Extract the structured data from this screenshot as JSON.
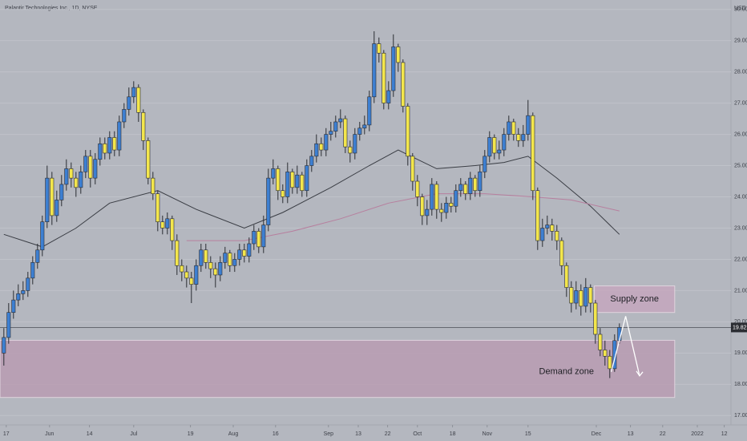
{
  "chart_data": {
    "type": "candlestick",
    "title": "Palantir Technologies Inc., 1D, NYSE",
    "currency": "USD",
    "background": "#b4b7bf",
    "up_color": "#3d7fd1",
    "down_color": "#f3e64c",
    "xlim": [
      -0.8,
      151.2
    ],
    "ylim": [
      16.7,
      30.3
    ],
    "yticks": [
      {
        "value": 17,
        "label": "17.00"
      },
      {
        "value": 18,
        "label": "18.00"
      },
      {
        "value": 19,
        "label": "19.00"
      },
      {
        "value": 20,
        "label": "20.00"
      },
      {
        "value": 21,
        "label": "21.00"
      },
      {
        "value": 22,
        "label": "22.00"
      },
      {
        "value": 23,
        "label": "23.00"
      },
      {
        "value": 24,
        "label": "24.00"
      },
      {
        "value": 25,
        "label": "25.00"
      },
      {
        "value": 26,
        "label": "26.00"
      },
      {
        "value": 27,
        "label": "27.00"
      },
      {
        "value": 28,
        "label": "28.00"
      },
      {
        "value": 29,
        "label": "29.00"
      },
      {
        "value": 30,
        "label": "30.00"
      }
    ],
    "xticks": [
      {
        "value": 0.5,
        "label": "17"
      },
      {
        "value": 9.5,
        "label": "Jun"
      },
      {
        "value": 17.8,
        "label": "14"
      },
      {
        "value": 27,
        "label": "Jul"
      },
      {
        "value": 38.8,
        "label": "19"
      },
      {
        "value": 47.7,
        "label": "Aug"
      },
      {
        "value": 56.5,
        "label": "16"
      },
      {
        "value": 67.5,
        "label": "Sep"
      },
      {
        "value": 73.7,
        "label": "13"
      },
      {
        "value": 79.8,
        "label": "22"
      },
      {
        "value": 86,
        "label": "Oct"
      },
      {
        "value": 93.3,
        "label": "18"
      },
      {
        "value": 100.5,
        "label": "Nov"
      },
      {
        "value": 109,
        "label": "15"
      },
      {
        "value": 123.2,
        "label": "Dec"
      },
      {
        "value": 130.3,
        "label": "13"
      },
      {
        "value": 137,
        "label": "22"
      },
      {
        "value": 144.2,
        "label": "2022"
      },
      {
        "value": 149.8,
        "label": "12"
      }
    ],
    "grid": true,
    "open": [
      19.0,
      19.5,
      20.3,
      20.7,
      20.9,
      21.0,
      21.4,
      21.9,
      22.3,
      23.2,
      24.6,
      23.4,
      23.9,
      24.4,
      24.9,
      24.6,
      24.3,
      24.8,
      25.3,
      24.6,
      25.2,
      25.7,
      25.4,
      25.9,
      25.5,
      26.4,
      26.8,
      27.2,
      27.5,
      26.7,
      25.8,
      24.6,
      24.1,
      23.2,
      23.0,
      23.3,
      22.6,
      21.8,
      21.6,
      21.4,
      21.2,
      21.8,
      22.3,
      21.9,
      21.7,
      21.5,
      21.9,
      22.2,
      21.8,
      22.0,
      22.3,
      22.1,
      22.5,
      22.9,
      22.4,
      23.1,
      24.6,
      24.9,
      24.2,
      24.0,
      24.8,
      24.3,
      24.7,
      24.2,
      25.0,
      25.3,
      25.7,
      25.5,
      26.0,
      26.1,
      26.4,
      26.5,
      25.6,
      25.4,
      26.0,
      26.2,
      26.3,
      27.2,
      28.9,
      28.6,
      27.0,
      27.4,
      28.8,
      28.3,
      26.9,
      25.3,
      24.5,
      24.0,
      23.4,
      23.6,
      24.4,
      23.6,
      23.5,
      23.8,
      23.7,
      24.2,
      24.4,
      24.1,
      24.6,
      24.2,
      24.8,
      25.3,
      25.9,
      25.4,
      25.5,
      26.0,
      26.4,
      26.0,
      25.8,
      26.0,
      26.6,
      24.2,
      22.6,
      23.0,
      23.1,
      22.9,
      22.6,
      21.8,
      21.1,
      20.6,
      21.0,
      20.5,
      21.1,
      20.6,
      19.6,
      19.1,
      18.9,
      18.5,
      19.4
    ],
    "high": [
      19.8,
      20.6,
      21.0,
      21.2,
      21.3,
      21.6,
      22.1,
      22.5,
      23.4,
      25.0,
      24.8,
      24.2,
      24.7,
      25.2,
      25.1,
      24.8,
      25.0,
      25.5,
      25.5,
      25.4,
      25.9,
      25.9,
      26.1,
      26.1,
      26.6,
      27.0,
      27.5,
      27.7,
      27.6,
      26.8,
      25.9,
      24.8,
      24.2,
      23.4,
      23.5,
      23.4,
      22.8,
      22.0,
      21.8,
      21.6,
      22.0,
      22.5,
      22.5,
      22.1,
      21.9,
      22.1,
      22.4,
      22.3,
      22.2,
      22.5,
      22.5,
      22.7,
      23.1,
      23.0,
      23.4,
      24.9,
      25.2,
      25.0,
      24.4,
      25.1,
      24.9,
      25.0,
      24.8,
      25.2,
      25.5,
      26.0,
      25.9,
      26.2,
      26.4,
      26.6,
      26.8,
      26.6,
      25.8,
      26.2,
      26.4,
      26.6,
      27.4,
      29.3,
      29.1,
      28.7,
      27.7,
      29.2,
      28.9,
      28.4,
      27.0,
      25.4,
      24.7,
      24.1,
      23.9,
      24.6,
      24.5,
      23.8,
      24.0,
      24.0,
      24.4,
      24.6,
      24.5,
      24.8,
      24.7,
      25.0,
      25.5,
      26.1,
      26.0,
      25.8,
      26.2,
      26.6,
      26.5,
      26.2,
      26.3,
      27.1,
      26.7,
      24.3,
      23.3,
      23.4,
      23.3,
      23.1,
      22.7,
      21.9,
      21.3,
      21.3,
      21.2,
      21.4,
      21.2,
      20.7,
      19.8,
      19.4,
      19.1,
      19.6,
      19.95
    ],
    "low": [
      18.6,
      19.3,
      20.1,
      20.5,
      20.7,
      20.8,
      21.2,
      21.7,
      22.1,
      23.0,
      23.1,
      23.2,
      23.7,
      24.2,
      24.3,
      24.0,
      24.1,
      24.6,
      24.3,
      24.4,
      25.0,
      25.2,
      25.2,
      25.3,
      25.3,
      26.2,
      26.6,
      27.0,
      26.4,
      25.5,
      24.4,
      23.9,
      22.9,
      22.8,
      22.8,
      22.3,
      21.5,
      21.3,
      21.1,
      20.6,
      21.0,
      21.6,
      21.7,
      21.4,
      21.1,
      21.3,
      21.7,
      21.6,
      21.6,
      21.8,
      21.9,
      21.9,
      22.3,
      22.2,
      22.2,
      22.9,
      24.4,
      23.9,
      23.8,
      23.8,
      24.1,
      24.1,
      24.0,
      24.0,
      24.8,
      25.1,
      25.3,
      25.3,
      25.8,
      25.9,
      26.2,
      25.4,
      25.1,
      25.2,
      25.8,
      26.0,
      26.1,
      27.0,
      28.3,
      26.8,
      26.8,
      27.2,
      28.0,
      26.7,
      25.0,
      24.2,
      23.7,
      23.1,
      23.1,
      23.4,
      23.3,
      23.2,
      23.3,
      23.5,
      23.5,
      24.0,
      23.9,
      23.9,
      24.0,
      24.0,
      24.6,
      25.1,
      25.2,
      25.2,
      25.3,
      25.8,
      25.8,
      25.6,
      25.6,
      25.8,
      23.9,
      22.3,
      22.4,
      22.8,
      22.6,
      22.3,
      21.5,
      20.8,
      20.3,
      20.4,
      20.2,
      20.3,
      20.3,
      19.3,
      18.9,
      18.6,
      18.2,
      18.4,
      19.3
    ],
    "close": [
      19.5,
      20.3,
      20.7,
      20.9,
      21.0,
      21.4,
      21.9,
      22.3,
      23.2,
      24.6,
      23.4,
      23.9,
      24.4,
      24.9,
      24.6,
      24.3,
      24.8,
      25.3,
      24.6,
      25.2,
      25.7,
      25.4,
      25.9,
      25.5,
      26.4,
      26.8,
      27.2,
      27.5,
      26.7,
      25.8,
      24.6,
      24.1,
      23.2,
      23.0,
      23.3,
      22.6,
      21.8,
      21.6,
      21.4,
      21.2,
      21.8,
      22.3,
      21.9,
      21.7,
      21.5,
      21.9,
      22.2,
      21.8,
      22.0,
      22.3,
      22.1,
      22.5,
      22.9,
      22.4,
      23.1,
      24.6,
      24.9,
      24.2,
      24.0,
      24.8,
      24.3,
      24.7,
      24.2,
      25.0,
      25.3,
      25.7,
      25.5,
      26.0,
      26.1,
      26.4,
      26.5,
      25.6,
      25.4,
      26.0,
      26.2,
      26.3,
      27.2,
      28.9,
      28.6,
      27.0,
      27.4,
      28.8,
      28.3,
      26.9,
      25.3,
      24.5,
      24.0,
      23.4,
      23.6,
      24.4,
      23.6,
      23.5,
      23.8,
      23.7,
      24.2,
      24.4,
      24.1,
      24.6,
      24.2,
      24.8,
      25.3,
      25.9,
      25.4,
      25.5,
      26.0,
      26.4,
      26.0,
      25.8,
      26.0,
      26.6,
      24.2,
      22.6,
      23.0,
      23.1,
      22.9,
      22.6,
      21.8,
      21.1,
      20.6,
      21.0,
      20.5,
      21.1,
      20.6,
      19.6,
      19.1,
      18.9,
      18.5,
      19.4,
      19.82
    ],
    "last_price": {
      "value": 19.82,
      "label": "19.82"
    },
    "lines": [
      {
        "color": "#3a3d44",
        "x": [
          0,
          8,
          15,
          22,
          32,
          40,
          50,
          58,
          68,
          76,
          82,
          90,
          98,
          104,
          109,
          115,
          122,
          128
        ],
        "values": [
          22.8,
          22.4,
          23.0,
          23.8,
          24.2,
          23.6,
          23.0,
          23.5,
          24.3,
          25.0,
          25.5,
          24.9,
          25.0,
          25.1,
          25.3,
          24.6,
          23.7,
          22.8
        ]
      },
      {
        "color": "#b77f9e",
        "x": [
          38,
          50,
          60,
          70,
          80,
          90,
          100,
          110,
          118,
          128
        ],
        "values": [
          22.6,
          22.6,
          22.9,
          23.3,
          23.8,
          24.1,
          24.1,
          24.0,
          23.9,
          23.55
        ]
      }
    ],
    "zones": [
      {
        "label": "Supply zone",
        "x": [
          122.8,
          139.5
        ],
        "range": [
          20.3,
          21.15
        ],
        "color": "#c4a7bd"
      },
      {
        "label": "Demand zone",
        "x": [
          -0.8,
          139.5
        ],
        "range": [
          17.58,
          19.41
        ],
        "color": "#b99cb2"
      }
    ],
    "arrow": {
      "color": "#ffffff",
      "x": [
        126.3,
        129.3,
        132.2
      ],
      "values": [
        18.4,
        20.18,
        18.27
      ]
    }
  }
}
